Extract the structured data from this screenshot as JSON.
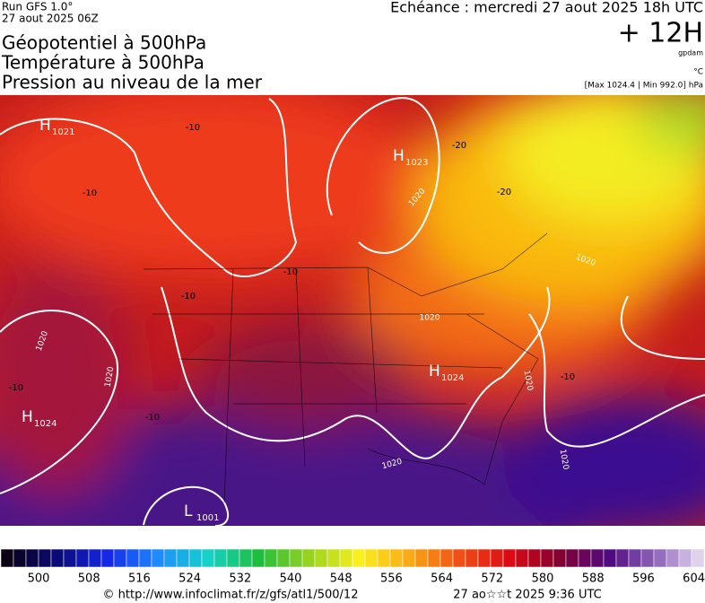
{
  "header": {
    "run": "Run GFS 1.0°",
    "run_date": "27 aout 2025 06Z",
    "titles": [
      "Géopotentiel à 500hPa",
      "Température à 500hPa",
      "Pression au niveau de la mer"
    ],
    "forecast": "Echéance : mercredi 27 aout 2025 18h UTC",
    "lead": "+ 12H",
    "unit_geo": "gpdam",
    "unit_temp": "°C",
    "pressure_range": "[Max 1024.4 | Min 992.0] hPa"
  },
  "map": {
    "pressure_centers": [
      {
        "letter": "H",
        "value": "1021"
      },
      {
        "letter": "H",
        "value": "1023"
      },
      {
        "letter": "H",
        "value": "1024"
      },
      {
        "letter": "H",
        "value": "1024"
      },
      {
        "letter": "L",
        "value": "1001"
      }
    ],
    "isobar_labels": [
      "1020",
      "1020",
      "1020",
      "1020",
      "1020",
      "1020",
      "1020",
      "1020"
    ],
    "temperature_labels": [
      "-10",
      "-10",
      "-10",
      "-10",
      "-10",
      "-20",
      "-20",
      "-10",
      "-10"
    ]
  },
  "colorbar": {
    "labels": [
      500,
      508,
      516,
      524,
      532,
      540,
      548,
      556,
      564,
      572,
      580,
      588,
      596,
      604
    ]
  },
  "footer": {
    "source": "© http://www.infoclimat.fr/z/gfs/atl1/500/12",
    "timestamp": "27 ao☆☆t 2025  9:36 UTC"
  }
}
